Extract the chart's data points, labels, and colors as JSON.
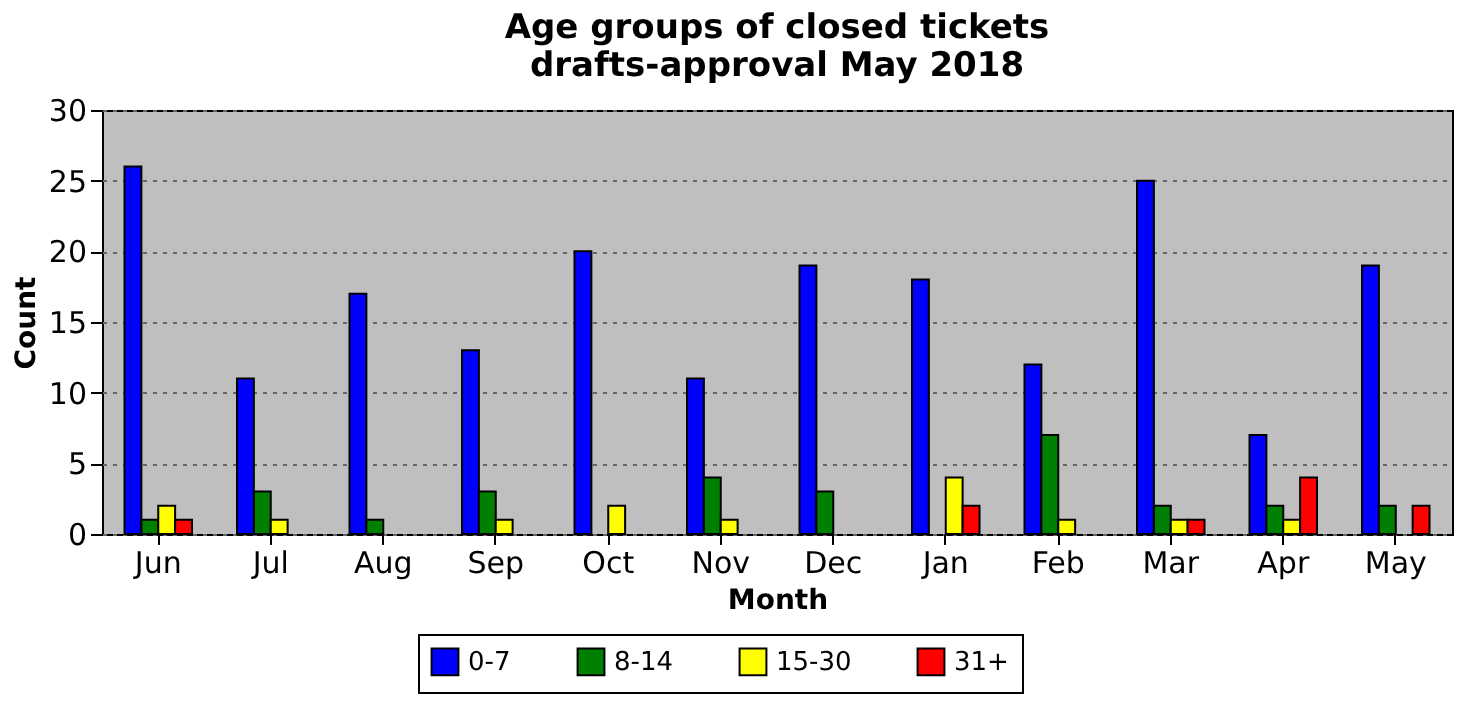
{
  "chart_data": {
    "type": "bar",
    "title": "Age groups of closed tickets\ndrafts-approval May 2018",
    "xlabel": "Month",
    "ylabel": "Count",
    "categories": [
      "Jun",
      "Jul",
      "Aug",
      "Sep",
      "Oct",
      "Nov",
      "Dec",
      "Jan",
      "Feb",
      "Mar",
      "Apr",
      "May"
    ],
    "series": [
      {
        "name": "0-7",
        "color": "#0000ff",
        "values": [
          26,
          11,
          17,
          13,
          20,
          11,
          19,
          18,
          12,
          25,
          7,
          19
        ]
      },
      {
        "name": "8-14",
        "color": "#008000",
        "values": [
          1,
          3,
          1,
          3,
          0,
          4,
          3,
          0,
          7,
          2,
          2,
          2
        ]
      },
      {
        "name": "15-30",
        "color": "#ffff00",
        "values": [
          2,
          1,
          0,
          1,
          2,
          1,
          0,
          4,
          1,
          1,
          1,
          0
        ]
      },
      {
        "name": "31+",
        "color": "#ff0000",
        "values": [
          1,
          0,
          0,
          0,
          0,
          0,
          0,
          2,
          0,
          1,
          4,
          2
        ]
      }
    ],
    "ylim": [
      0,
      30
    ],
    "yticks": [
      0,
      5,
      10,
      15,
      20,
      25,
      30
    ],
    "grid": "y",
    "legend": "bottom"
  }
}
